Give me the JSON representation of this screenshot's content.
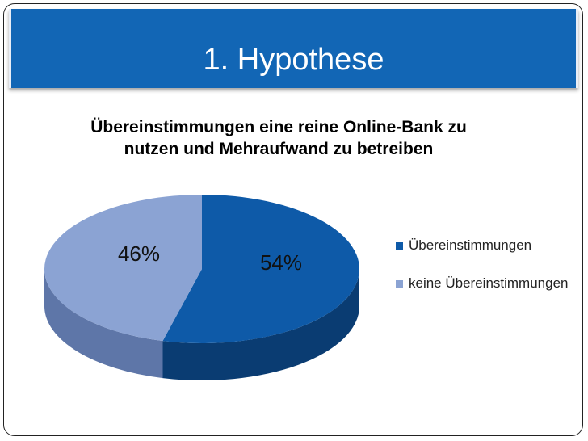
{
  "slide": {
    "title": "1. Hypothese"
  },
  "colors": {
    "title_bar": "#1266b5",
    "series_top": [
      "#0e5aa8",
      "#8ba3d3"
    ],
    "series_side": [
      "#0a3c72",
      "#5e76a8"
    ]
  },
  "chart_data": {
    "type": "pie",
    "title": "Übereinstimmungen eine reine Online-Bank zu nutzen und Mehraufwand zu betreiben",
    "categories": [
      "Übereinstimmungen",
      "keine Übereinstimmungen"
    ],
    "values": [
      54,
      46
    ],
    "data_labels": [
      "54%",
      "46%"
    ],
    "legend": {
      "position": "right",
      "entries": [
        "Übereinstimmungen",
        "keine Übereinstimmungen"
      ]
    },
    "style": "3d"
  }
}
